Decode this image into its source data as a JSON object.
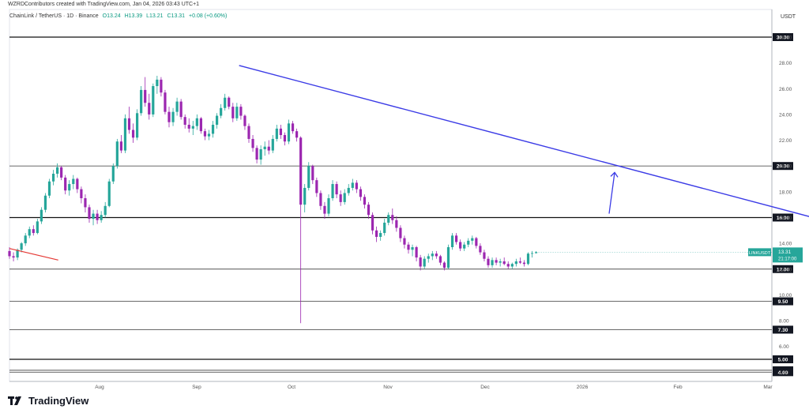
{
  "header": {
    "attribution": "WZRDContributors created with TradingView.com, Jan 04, 2026 03:43 UTC+1"
  },
  "legend": {
    "symbol": "ChainLink / TetherUS · 1D · Binance",
    "open": "O13.24",
    "high": "H13.39",
    "low": "L13.21",
    "close": "C13.31",
    "change": "+0.08 (+0.60%)"
  },
  "axis": {
    "currency": "USDT"
  },
  "footer": {
    "brand": "TradingView"
  },
  "colors": {
    "up": "#26a69a",
    "down": "#9c27b0",
    "trendline": "#3b3be6",
    "red_line": "#e53935",
    "level_line": "#000000",
    "price_tag": "#26a69a"
  },
  "chart_data": {
    "type": "candlestick",
    "title": "ChainLink / TetherUS · 1D · Binance",
    "x_tick_labels": [
      "Aug",
      "Sep",
      "Oct",
      "Nov",
      "Dec",
      "2026",
      "Feb",
      "Mar"
    ],
    "y_tick_labels": [
      "4.00",
      "6.00",
      "8.00",
      "10.00",
      "12.00",
      "14.00",
      "16.00",
      "18.00",
      "20.00",
      "22.00",
      "24.00",
      "26.00",
      "28.00",
      "30.00"
    ],
    "ylim": [
      4,
      32
    ],
    "horizontal_levels": [
      {
        "label": "30.00",
        "value": 30.0
      },
      {
        "label": "20.00",
        "value": 20.0
      },
      {
        "label": "16.00",
        "value": 16.0
      },
      {
        "label": "12.00",
        "value": 12.0
      },
      {
        "label": "9.50",
        "value": 9.5
      },
      {
        "label": "7.30",
        "value": 7.3
      },
      {
        "label": "5.00",
        "value": 5.0
      },
      {
        "label": "4.15",
        "value": 4.15
      },
      {
        "label": "4.00",
        "value": 4.0
      }
    ],
    "last_price": {
      "symbol": "LINKUSDT",
      "price": "13.31",
      "countdown": "21:17:00"
    },
    "trendline": {
      "start": [
        53,
        27.8
      ],
      "end": [
        220,
        14.2
      ]
    },
    "red_trendline": {
      "start": [
        0,
        13.6
      ],
      "end": [
        14,
        12.7
      ]
    },
    "arrow": {
      "start": [
        204,
        16.3
      ],
      "end": [
        207,
        19.5
      ]
    },
    "ohlc": [
      [
        13.4,
        13.7,
        12.8,
        13.0
      ],
      [
        13.0,
        13.3,
        12.6,
        12.9
      ],
      [
        12.9,
        13.6,
        12.7,
        13.5
      ],
      [
        13.5,
        14.1,
        13.3,
        14.0
      ],
      [
        14.0,
        14.8,
        13.8,
        14.6
      ],
      [
        14.6,
        15.3,
        14.4,
        15.1
      ],
      [
        15.1,
        15.4,
        14.6,
        14.8
      ],
      [
        14.8,
        15.9,
        14.7,
        15.7
      ],
      [
        15.7,
        16.8,
        15.5,
        16.6
      ],
      [
        16.6,
        17.9,
        16.4,
        17.7
      ],
      [
        17.7,
        19.0,
        17.5,
        18.8
      ],
      [
        18.8,
        19.7,
        18.5,
        19.4
      ],
      [
        19.4,
        20.2,
        19.1,
        19.9
      ],
      [
        19.9,
        20.0,
        18.9,
        19.1
      ],
      [
        19.1,
        19.3,
        17.8,
        18.1
      ],
      [
        18.1,
        18.9,
        17.7,
        18.6
      ],
      [
        18.6,
        19.3,
        18.2,
        19.0
      ],
      [
        19.0,
        19.1,
        17.9,
        18.2
      ],
      [
        18.2,
        18.4,
        17.1,
        17.5
      ],
      [
        17.5,
        17.8,
        16.4,
        16.8
      ],
      [
        16.8,
        17.0,
        15.6,
        15.9
      ],
      [
        15.9,
        16.6,
        15.4,
        16.3
      ],
      [
        16.3,
        16.6,
        15.5,
        15.8
      ],
      [
        15.8,
        16.5,
        15.6,
        16.2
      ],
      [
        16.2,
        17.2,
        16.0,
        16.9
      ],
      [
        16.9,
        19.0,
        16.8,
        18.8
      ],
      [
        18.8,
        20.2,
        18.6,
        20.0
      ],
      [
        20.0,
        22.1,
        19.8,
        21.9
      ],
      [
        21.9,
        22.4,
        21.0,
        21.2
      ],
      [
        21.2,
        24.0,
        21.0,
        23.7
      ],
      [
        23.7,
        24.6,
        22.5,
        22.8
      ],
      [
        22.8,
        23.3,
        21.8,
        22.2
      ],
      [
        22.2,
        24.4,
        22.0,
        24.1
      ],
      [
        24.1,
        26.2,
        23.9,
        25.9
      ],
      [
        25.9,
        26.9,
        24.6,
        24.9
      ],
      [
        24.9,
        25.6,
        23.6,
        24.0
      ],
      [
        24.0,
        26.4,
        23.8,
        26.2
      ],
      [
        26.2,
        27.0,
        25.6,
        26.7
      ],
      [
        26.7,
        26.9,
        25.4,
        25.7
      ],
      [
        25.7,
        25.9,
        24.0,
        24.2
      ],
      [
        24.2,
        24.6,
        23.0,
        23.4
      ],
      [
        23.4,
        24.5,
        23.1,
        24.2
      ],
      [
        24.2,
        25.3,
        23.9,
        25.0
      ],
      [
        25.0,
        25.2,
        23.6,
        23.8
      ],
      [
        23.8,
        24.0,
        22.9,
        23.2
      ],
      [
        23.2,
        23.7,
        22.6,
        22.9
      ],
      [
        22.9,
        23.5,
        22.4,
        23.1
      ],
      [
        23.1,
        24.0,
        22.8,
        23.7
      ],
      [
        23.7,
        23.8,
        22.5,
        22.7
      ],
      [
        22.7,
        22.9,
        22.0,
        22.3
      ],
      [
        22.3,
        22.8,
        22.0,
        22.5
      ],
      [
        22.5,
        23.5,
        22.2,
        23.2
      ],
      [
        23.2,
        24.1,
        22.9,
        23.9
      ],
      [
        23.9,
        24.8,
        23.7,
        24.5
      ],
      [
        24.5,
        25.6,
        24.3,
        25.3
      ],
      [
        25.3,
        25.4,
        24.4,
        24.6
      ],
      [
        24.6,
        24.9,
        23.4,
        23.7
      ],
      [
        23.7,
        24.9,
        23.5,
        24.6
      ],
      [
        24.6,
        24.8,
        23.6,
        23.9
      ],
      [
        23.9,
        24.0,
        22.8,
        23.1
      ],
      [
        23.1,
        23.3,
        21.8,
        22.1
      ],
      [
        22.1,
        22.4,
        21.1,
        21.4
      ],
      [
        21.4,
        21.6,
        20.2,
        20.5
      ],
      [
        20.5,
        21.6,
        20.1,
        21.3
      ],
      [
        21.3,
        21.9,
        20.8,
        21.5
      ],
      [
        21.5,
        22.0,
        20.9,
        21.2
      ],
      [
        21.2,
        22.4,
        21.0,
        22.1
      ],
      [
        22.1,
        23.2,
        21.9,
        22.9
      ],
      [
        22.9,
        23.2,
        22.1,
        22.4
      ],
      [
        22.4,
        22.6,
        21.6,
        21.9
      ],
      [
        21.9,
        23.6,
        21.7,
        23.3
      ],
      [
        23.3,
        23.5,
        22.5,
        22.7
      ],
      [
        22.7,
        22.9,
        21.9,
        22.2
      ],
      [
        22.2,
        22.3,
        7.8,
        17.0
      ],
      [
        17.0,
        18.6,
        16.4,
        18.3
      ],
      [
        18.3,
        20.3,
        18.1,
        20.0
      ],
      [
        20.0,
        20.1,
        18.6,
        18.9
      ],
      [
        18.9,
        19.1,
        17.6,
        17.9
      ],
      [
        17.9,
        18.1,
        16.6,
        16.9
      ],
      [
        16.9,
        17.2,
        15.9,
        16.3
      ],
      [
        16.3,
        17.8,
        16.1,
        17.5
      ],
      [
        17.5,
        18.9,
        17.3,
        18.6
      ],
      [
        18.6,
        18.8,
        17.5,
        17.8
      ],
      [
        17.8,
        18.1,
        16.9,
        17.2
      ],
      [
        17.2,
        18.2,
        17.0,
        17.9
      ],
      [
        17.9,
        18.6,
        17.7,
        18.3
      ],
      [
        18.3,
        19.0,
        18.1,
        18.7
      ],
      [
        18.7,
        18.9,
        17.9,
        18.2
      ],
      [
        18.2,
        18.4,
        17.3,
        17.6
      ],
      [
        17.6,
        17.8,
        16.7,
        17.0
      ],
      [
        17.0,
        17.2,
        15.9,
        16.2
      ],
      [
        16.2,
        16.4,
        14.7,
        15.0
      ],
      [
        15.0,
        15.3,
        14.1,
        14.5
      ],
      [
        14.5,
        15.0,
        14.2,
        14.8
      ],
      [
        14.8,
        15.9,
        14.6,
        15.6
      ],
      [
        15.6,
        16.4,
        15.4,
        16.2
      ],
      [
        16.2,
        16.7,
        15.5,
        15.8
      ],
      [
        15.8,
        16.1,
        14.9,
        15.2
      ],
      [
        15.2,
        15.4,
        14.1,
        14.4
      ],
      [
        14.4,
        14.6,
        13.6,
        13.9
      ],
      [
        13.9,
        14.1,
        13.2,
        13.5
      ],
      [
        13.5,
        13.9,
        13.0,
        13.7
      ],
      [
        13.7,
        13.8,
        12.6,
        12.9
      ],
      [
        12.9,
        13.1,
        11.9,
        12.2
      ],
      [
        12.2,
        13.0,
        12.0,
        12.8
      ],
      [
        12.8,
        13.2,
        12.5,
        13.0
      ],
      [
        13.0,
        13.4,
        12.7,
        13.2
      ],
      [
        13.2,
        13.4,
        12.8,
        13.0
      ],
      [
        13.0,
        13.1,
        12.3,
        12.5
      ],
      [
        12.5,
        12.6,
        11.9,
        12.1
      ],
      [
        12.1,
        13.9,
        12.0,
        13.7
      ],
      [
        13.7,
        14.8,
        13.5,
        14.6
      ],
      [
        14.6,
        14.8,
        13.9,
        14.1
      ],
      [
        14.1,
        14.3,
        13.4,
        13.6
      ],
      [
        13.6,
        14.1,
        13.4,
        13.9
      ],
      [
        13.9,
        14.4,
        13.7,
        14.2
      ],
      [
        14.2,
        14.6,
        13.9,
        14.4
      ],
      [
        14.4,
        14.5,
        13.6,
        13.8
      ],
      [
        13.8,
        14.0,
        13.1,
        13.3
      ],
      [
        13.3,
        13.5,
        12.6,
        12.8
      ],
      [
        12.8,
        13.0,
        12.1,
        12.3
      ],
      [
        12.3,
        12.9,
        12.1,
        12.7
      ],
      [
        12.7,
        12.9,
        12.3,
        12.5
      ],
      [
        12.5,
        12.8,
        12.2,
        12.6
      ],
      [
        12.6,
        12.9,
        12.3,
        12.4
      ],
      [
        12.4,
        12.6,
        12.0,
        12.2
      ],
      [
        12.2,
        12.5,
        12.0,
        12.4
      ],
      [
        12.4,
        12.8,
        12.2,
        12.6
      ],
      [
        12.6,
        12.9,
        12.4,
        12.5
      ],
      [
        12.5,
        12.7,
        12.2,
        12.4
      ],
      [
        12.4,
        13.3,
        12.3,
        13.2
      ],
      [
        13.2,
        13.4,
        12.9,
        13.24
      ],
      [
        13.24,
        13.39,
        13.21,
        13.31
      ]
    ]
  }
}
